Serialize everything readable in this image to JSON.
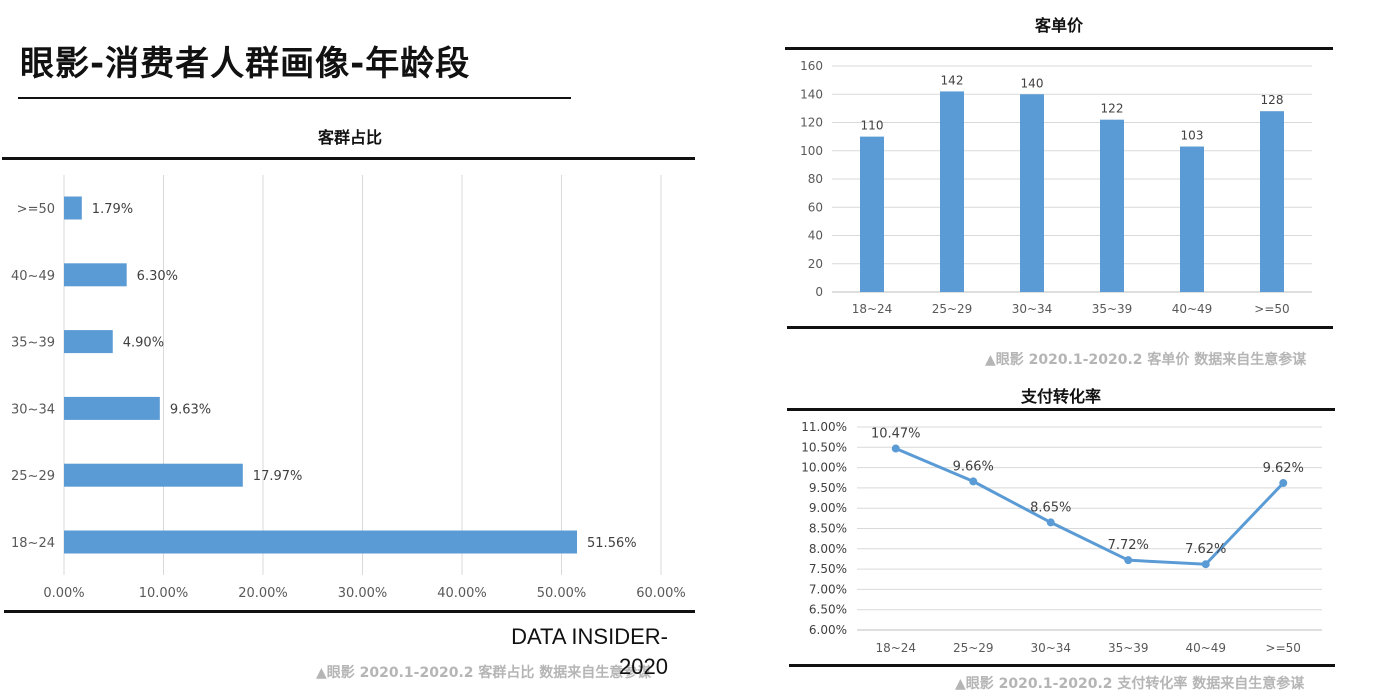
{
  "page": {
    "title": "眼影-消费者人群画像-年龄段",
    "brand": "DATA INSIDER-2020"
  },
  "chart_data": [
    {
      "type": "bar",
      "orientation": "horizontal",
      "title": "客群占比",
      "categories": [
        ">=50",
        "40~49",
        "35~39",
        "30~34",
        "25~29",
        "18~24"
      ],
      "values": [
        1.79,
        6.3,
        4.9,
        9.63,
        17.97,
        51.56
      ],
      "value_labels": [
        "1.79%",
        "6.30%",
        "4.90%",
        "9.63%",
        "17.97%",
        "51.56%"
      ],
      "xlim": [
        0,
        60
      ],
      "xticks": [
        "0.00%",
        "10.00%",
        "20.00%",
        "30.00%",
        "40.00%",
        "50.00%",
        "60.00%"
      ],
      "grid": true,
      "color": "#5b9bd5",
      "source": "▲眼影 2020.1-2020.2 客群占比 数据来自生意参谋"
    },
    {
      "type": "bar",
      "title": "客单价",
      "categories": [
        "18~24",
        "25~29",
        "30~34",
        "35~39",
        "40~49",
        ">=50"
      ],
      "values": [
        110,
        142,
        140,
        122,
        103,
        128
      ],
      "ylim": [
        0,
        160
      ],
      "yticks": [
        "0",
        "20",
        "40",
        "60",
        "80",
        "100",
        "120",
        "140",
        "160"
      ],
      "grid": true,
      "color": "#5b9bd5",
      "source": "▲眼影 2020.1-2020.2 客单价 数据来自生意参谋"
    },
    {
      "type": "line",
      "title": "支付转化率",
      "categories": [
        "18~24",
        "25~29",
        "30~34",
        "35~39",
        "40~49",
        ">=50"
      ],
      "values": [
        10.47,
        9.66,
        8.65,
        7.72,
        7.62,
        9.62
      ],
      "value_labels": [
        "10.47%",
        "9.66%",
        "8.65%",
        "7.72%",
        "7.62%",
        "9.62%"
      ],
      "ylim": [
        6.0,
        11.0
      ],
      "yticks": [
        "6.00%",
        "6.50%",
        "7.00%",
        "7.50%",
        "8.00%",
        "8.50%",
        "9.00%",
        "9.50%",
        "10.00%",
        "10.50%",
        "11.00%"
      ],
      "grid": true,
      "color": "#5b9bd5",
      "source": "▲眼影 2020.1-2020.2 支付转化率 数据来自生意参谋"
    }
  ]
}
